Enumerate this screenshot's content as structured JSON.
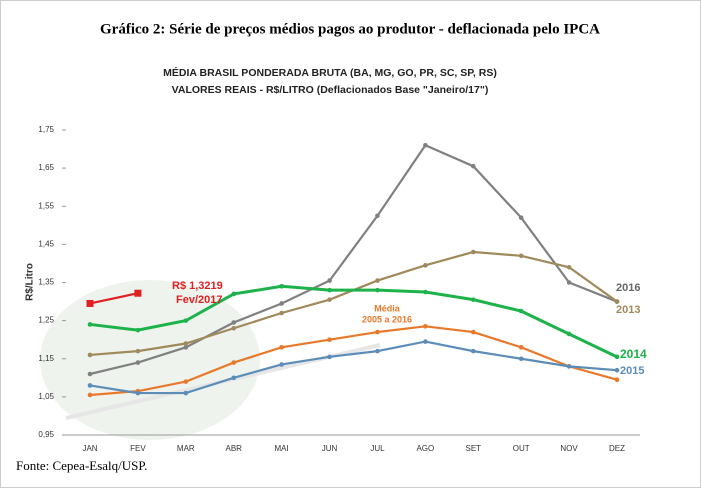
{
  "chart_data": {
    "type": "line",
    "title": "Gráfico 2: Série de preços médios pagos ao produtor - deflacionada pelo IPCA",
    "subtitle": [
      "MÉDIA BRASIL PONDERADA BRUTA (BA, MG, GO, PR, SC, SP, RS)",
      "VALORES REAIS - R$/LITRO (Deflacionados Base \"Janeiro/17\")"
    ],
    "y_label": "R$/Litro",
    "source": "Fonte: Cepea-Esalq/USP.",
    "categories": [
      "JAN",
      "FEV",
      "MAR",
      "ABR",
      "MAI",
      "JUN",
      "JUL",
      "AGO",
      "SET",
      "OUT",
      "NOV",
      "DEZ"
    ],
    "ylim": [
      0.95,
      1.75
    ],
    "yticks": [
      {
        "value": 0.95,
        "label": "0,95"
      },
      {
        "value": 1.05,
        "label": "1,05"
      },
      {
        "value": 1.15,
        "label": "1,15"
      },
      {
        "value": 1.25,
        "label": "1,25"
      },
      {
        "value": 1.35,
        "label": "1,35"
      },
      {
        "value": 1.45,
        "label": "1,45"
      },
      {
        "value": 1.55,
        "label": "1,55"
      },
      {
        "value": 1.65,
        "label": "1,65"
      },
      {
        "value": 1.75,
        "label": "1,75"
      }
    ],
    "series": [
      {
        "name": "2016",
        "color": "#808080",
        "values": [
          1.11,
          1.14,
          1.18,
          1.245,
          1.295,
          1.355,
          1.525,
          1.71,
          1.655,
          1.52,
          1.35,
          1.3
        ]
      },
      {
        "name": "2013",
        "color": "#a08a5c",
        "values": [
          1.16,
          1.17,
          1.19,
          1.23,
          1.27,
          1.305,
          1.355,
          1.395,
          1.43,
          1.42,
          1.39,
          1.3
        ]
      },
      {
        "name": "2014",
        "color": "#1db34a",
        "values": [
          1.24,
          1.225,
          1.25,
          1.32,
          1.34,
          1.33,
          1.33,
          1.325,
          1.305,
          1.275,
          1.215,
          1.155
        ]
      },
      {
        "name": "Média",
        "color": "#e8792a",
        "values": [
          1.055,
          1.065,
          1.09,
          1.14,
          1.18,
          1.2,
          1.22,
          1.235,
          1.22,
          1.18,
          1.13,
          1.095
        ]
      },
      {
        "name": "2015",
        "color": "#5b8db8",
        "values": [
          1.08,
          1.06,
          1.06,
          1.1,
          1.135,
          1.155,
          1.17,
          1.195,
          1.17,
          1.15,
          1.13,
          1.12
        ]
      },
      {
        "color": "#e02020",
        "values": [
          1.295,
          1.3219,
          null,
          null,
          null,
          null,
          null,
          null,
          null,
          null,
          null,
          null
        ],
        "value_labels": [
          null,
          "R$ 1,3219",
          null,
          null,
          null,
          null,
          null,
          null,
          null,
          null,
          null,
          null
        ]
      }
    ],
    "annotations": [
      "2005 a 2016",
      "Fev/2017"
    ]
  }
}
